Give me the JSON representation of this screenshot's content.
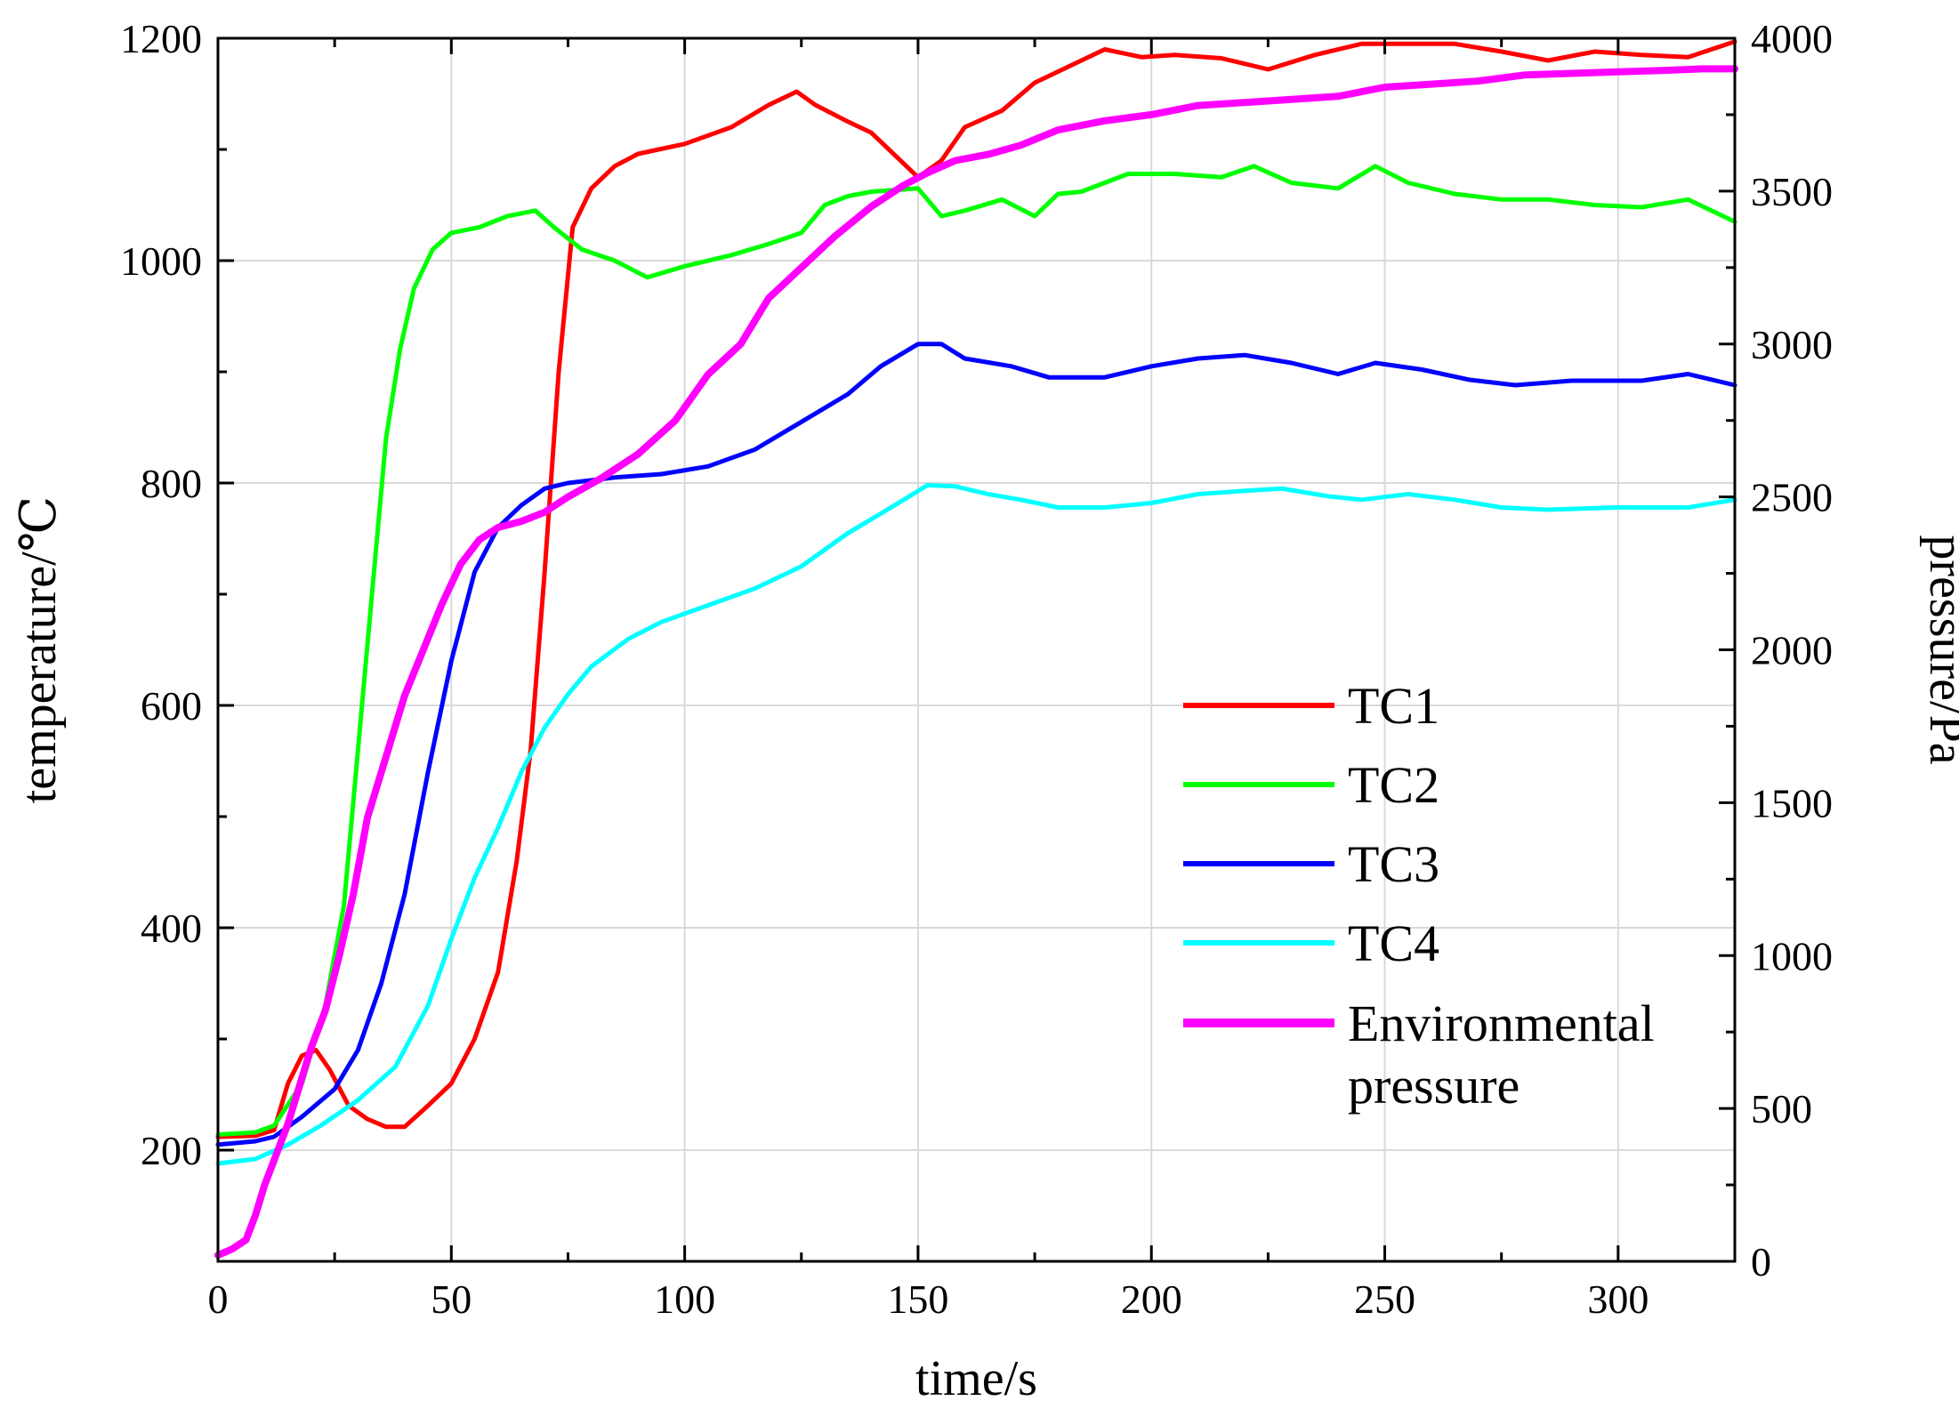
{
  "chart_data": {
    "type": "line",
    "title": "",
    "xlabel": "time/s",
    "ylabel": "temperature/℃",
    "y2label": "pressure/Pa",
    "xlim": [
      0,
      325
    ],
    "ylim": [
      100,
      1200
    ],
    "y2lim": [
      0,
      4000
    ],
    "grid": true,
    "legend_position": "center-right",
    "x_ticks": [
      0,
      50,
      100,
      150,
      200,
      250,
      300
    ],
    "y_ticks": [
      200,
      400,
      600,
      800,
      1000,
      1200
    ],
    "y2_ticks": [
      0,
      500,
      1000,
      1500,
      2000,
      2500,
      3000,
      3500,
      4000
    ],
    "series": [
      {
        "name": "TC1",
        "axis": "left",
        "color": "#ff0000",
        "points": [
          [
            0,
            212
          ],
          [
            8,
            213
          ],
          [
            12,
            218
          ],
          [
            15,
            260
          ],
          [
            18,
            285
          ],
          [
            21,
            290
          ],
          [
            24,
            272
          ],
          [
            28,
            240
          ],
          [
            32,
            228
          ],
          [
            36,
            221
          ],
          [
            40,
            221
          ],
          [
            45,
            240
          ],
          [
            50,
            260
          ],
          [
            55,
            300
          ],
          [
            60,
            360
          ],
          [
            64,
            460
          ],
          [
            67,
            560
          ],
          [
            70,
            720
          ],
          [
            73,
            900
          ],
          [
            76,
            1030
          ],
          [
            80,
            1065
          ],
          [
            85,
            1085
          ],
          [
            90,
            1096
          ],
          [
            100,
            1105
          ],
          [
            110,
            1120
          ],
          [
            118,
            1140
          ],
          [
            124,
            1152
          ],
          [
            128,
            1140
          ],
          [
            135,
            1125
          ],
          [
            140,
            1115
          ],
          [
            145,
            1095
          ],
          [
            150,
            1075
          ],
          [
            155,
            1090
          ],
          [
            160,
            1120
          ],
          [
            168,
            1135
          ],
          [
            175,
            1160
          ],
          [
            185,
            1180
          ],
          [
            190,
            1190
          ],
          [
            198,
            1183
          ],
          [
            205,
            1185
          ],
          [
            215,
            1182
          ],
          [
            225,
            1172
          ],
          [
            235,
            1185
          ],
          [
            245,
            1195
          ],
          [
            255,
            1195
          ],
          [
            265,
            1195
          ],
          [
            275,
            1188
          ],
          [
            285,
            1180
          ],
          [
            295,
            1188
          ],
          [
            305,
            1185
          ],
          [
            315,
            1183
          ],
          [
            325,
            1197
          ]
        ]
      },
      {
        "name": "TC2",
        "axis": "left",
        "color": "#00ff00",
        "points": [
          [
            0,
            214
          ],
          [
            8,
            216
          ],
          [
            12,
            222
          ],
          [
            18,
            260
          ],
          [
            23,
            330
          ],
          [
            27,
            420
          ],
          [
            30,
            560
          ],
          [
            33,
            700
          ],
          [
            36,
            840
          ],
          [
            39,
            920
          ],
          [
            42,
            975
          ],
          [
            46,
            1010
          ],
          [
            50,
            1025
          ],
          [
            56,
            1030
          ],
          [
            62,
            1040
          ],
          [
            68,
            1045
          ],
          [
            72,
            1030
          ],
          [
            78,
            1010
          ],
          [
            85,
            1000
          ],
          [
            92,
            985
          ],
          [
            100,
            995
          ],
          [
            110,
            1005
          ],
          [
            118,
            1015
          ],
          [
            125,
            1025
          ],
          [
            130,
            1050
          ],
          [
            135,
            1058
          ],
          [
            140,
            1062
          ],
          [
            150,
            1065
          ],
          [
            155,
            1040
          ],
          [
            160,
            1045
          ],
          [
            168,
            1055
          ],
          [
            175,
            1040
          ],
          [
            180,
            1060
          ],
          [
            185,
            1062
          ],
          [
            195,
            1078
          ],
          [
            205,
            1078
          ],
          [
            215,
            1075
          ],
          [
            222,
            1085
          ],
          [
            230,
            1070
          ],
          [
            240,
            1065
          ],
          [
            248,
            1085
          ],
          [
            255,
            1070
          ],
          [
            265,
            1060
          ],
          [
            275,
            1055
          ],
          [
            285,
            1055
          ],
          [
            295,
            1050
          ],
          [
            305,
            1048
          ],
          [
            315,
            1055
          ],
          [
            320,
            1045
          ],
          [
            325,
            1035
          ]
        ]
      },
      {
        "name": "TC3",
        "axis": "left",
        "color": "#0000ff",
        "points": [
          [
            0,
            205
          ],
          [
            8,
            208
          ],
          [
            12,
            212
          ],
          [
            18,
            230
          ],
          [
            25,
            255
          ],
          [
            30,
            290
          ],
          [
            35,
            350
          ],
          [
            40,
            430
          ],
          [
            45,
            540
          ],
          [
            50,
            640
          ],
          [
            55,
            720
          ],
          [
            60,
            760
          ],
          [
            65,
            780
          ],
          [
            70,
            795
          ],
          [
            75,
            800
          ],
          [
            85,
            805
          ],
          [
            95,
            808
          ],
          [
            105,
            815
          ],
          [
            115,
            830
          ],
          [
            125,
            855
          ],
          [
            135,
            880
          ],
          [
            142,
            905
          ],
          [
            150,
            925
          ],
          [
            155,
            925
          ],
          [
            160,
            912
          ],
          [
            170,
            905
          ],
          [
            178,
            895
          ],
          [
            190,
            895
          ],
          [
            200,
            905
          ],
          [
            210,
            912
          ],
          [
            220,
            915
          ],
          [
            230,
            908
          ],
          [
            240,
            898
          ],
          [
            248,
            908
          ],
          [
            258,
            902
          ],
          [
            268,
            893
          ],
          [
            278,
            888
          ],
          [
            290,
            892
          ],
          [
            305,
            892
          ],
          [
            315,
            898
          ],
          [
            325,
            888
          ]
        ]
      },
      {
        "name": "TC4",
        "axis": "left",
        "color": "#00ffff",
        "points": [
          [
            0,
            188
          ],
          [
            8,
            192
          ],
          [
            15,
            205
          ],
          [
            22,
            222
          ],
          [
            30,
            245
          ],
          [
            38,
            275
          ],
          [
            45,
            330
          ],
          [
            50,
            390
          ],
          [
            55,
            445
          ],
          [
            60,
            490
          ],
          [
            65,
            540
          ],
          [
            70,
            580
          ],
          [
            75,
            610
          ],
          [
            80,
            635
          ],
          [
            88,
            660
          ],
          [
            95,
            675
          ],
          [
            105,
            690
          ],
          [
            115,
            705
          ],
          [
            125,
            725
          ],
          [
            135,
            755
          ],
          [
            145,
            780
          ],
          [
            152,
            798
          ],
          [
            158,
            797
          ],
          [
            165,
            790
          ],
          [
            172,
            785
          ],
          [
            180,
            778
          ],
          [
            190,
            778
          ],
          [
            200,
            782
          ],
          [
            210,
            790
          ],
          [
            220,
            793
          ],
          [
            228,
            795
          ],
          [
            238,
            788
          ],
          [
            245,
            785
          ],
          [
            255,
            790
          ],
          [
            265,
            785
          ],
          [
            275,
            778
          ],
          [
            285,
            776
          ],
          [
            300,
            778
          ],
          [
            315,
            778
          ],
          [
            325,
            785
          ]
        ]
      },
      {
        "name": "Environmental pressure",
        "axis": "right",
        "color": "#ff00ff",
        "points": [
          [
            0,
            20
          ],
          [
            3,
            40
          ],
          [
            6,
            70
          ],
          [
            8,
            150
          ],
          [
            10,
            250
          ],
          [
            12,
            330
          ],
          [
            15,
            450
          ],
          [
            18,
            600
          ],
          [
            20,
            700
          ],
          [
            23,
            820
          ],
          [
            26,
            1000
          ],
          [
            29,
            1200
          ],
          [
            32,
            1450
          ],
          [
            36,
            1650
          ],
          [
            40,
            1850
          ],
          [
            44,
            2000
          ],
          [
            48,
            2150
          ],
          [
            52,
            2280
          ],
          [
            56,
            2360
          ],
          [
            60,
            2400
          ],
          [
            65,
            2420
          ],
          [
            70,
            2450
          ],
          [
            75,
            2500
          ],
          [
            82,
            2560
          ],
          [
            90,
            2640
          ],
          [
            98,
            2750
          ],
          [
            105,
            2900
          ],
          [
            112,
            3000
          ],
          [
            118,
            3150
          ],
          [
            125,
            3250
          ],
          [
            132,
            3350
          ],
          [
            140,
            3450
          ],
          [
            147,
            3520
          ],
          [
            152,
            3560
          ],
          [
            158,
            3600
          ],
          [
            165,
            3620
          ],
          [
            172,
            3650
          ],
          [
            180,
            3700
          ],
          [
            190,
            3730
          ],
          [
            200,
            3750
          ],
          [
            210,
            3780
          ],
          [
            220,
            3790
          ],
          [
            230,
            3800
          ],
          [
            240,
            3810
          ],
          [
            250,
            3840
          ],
          [
            260,
            3850
          ],
          [
            270,
            3860
          ],
          [
            280,
            3880
          ],
          [
            290,
            3885
          ],
          [
            300,
            3890
          ],
          [
            310,
            3895
          ],
          [
            318,
            3900
          ],
          [
            325,
            3900
          ]
        ]
      }
    ]
  },
  "legend": {
    "items": [
      "TC1",
      "TC2",
      "TC3",
      "TC4"
    ],
    "env_line1": "Environmental",
    "env_line2": "pressure"
  }
}
